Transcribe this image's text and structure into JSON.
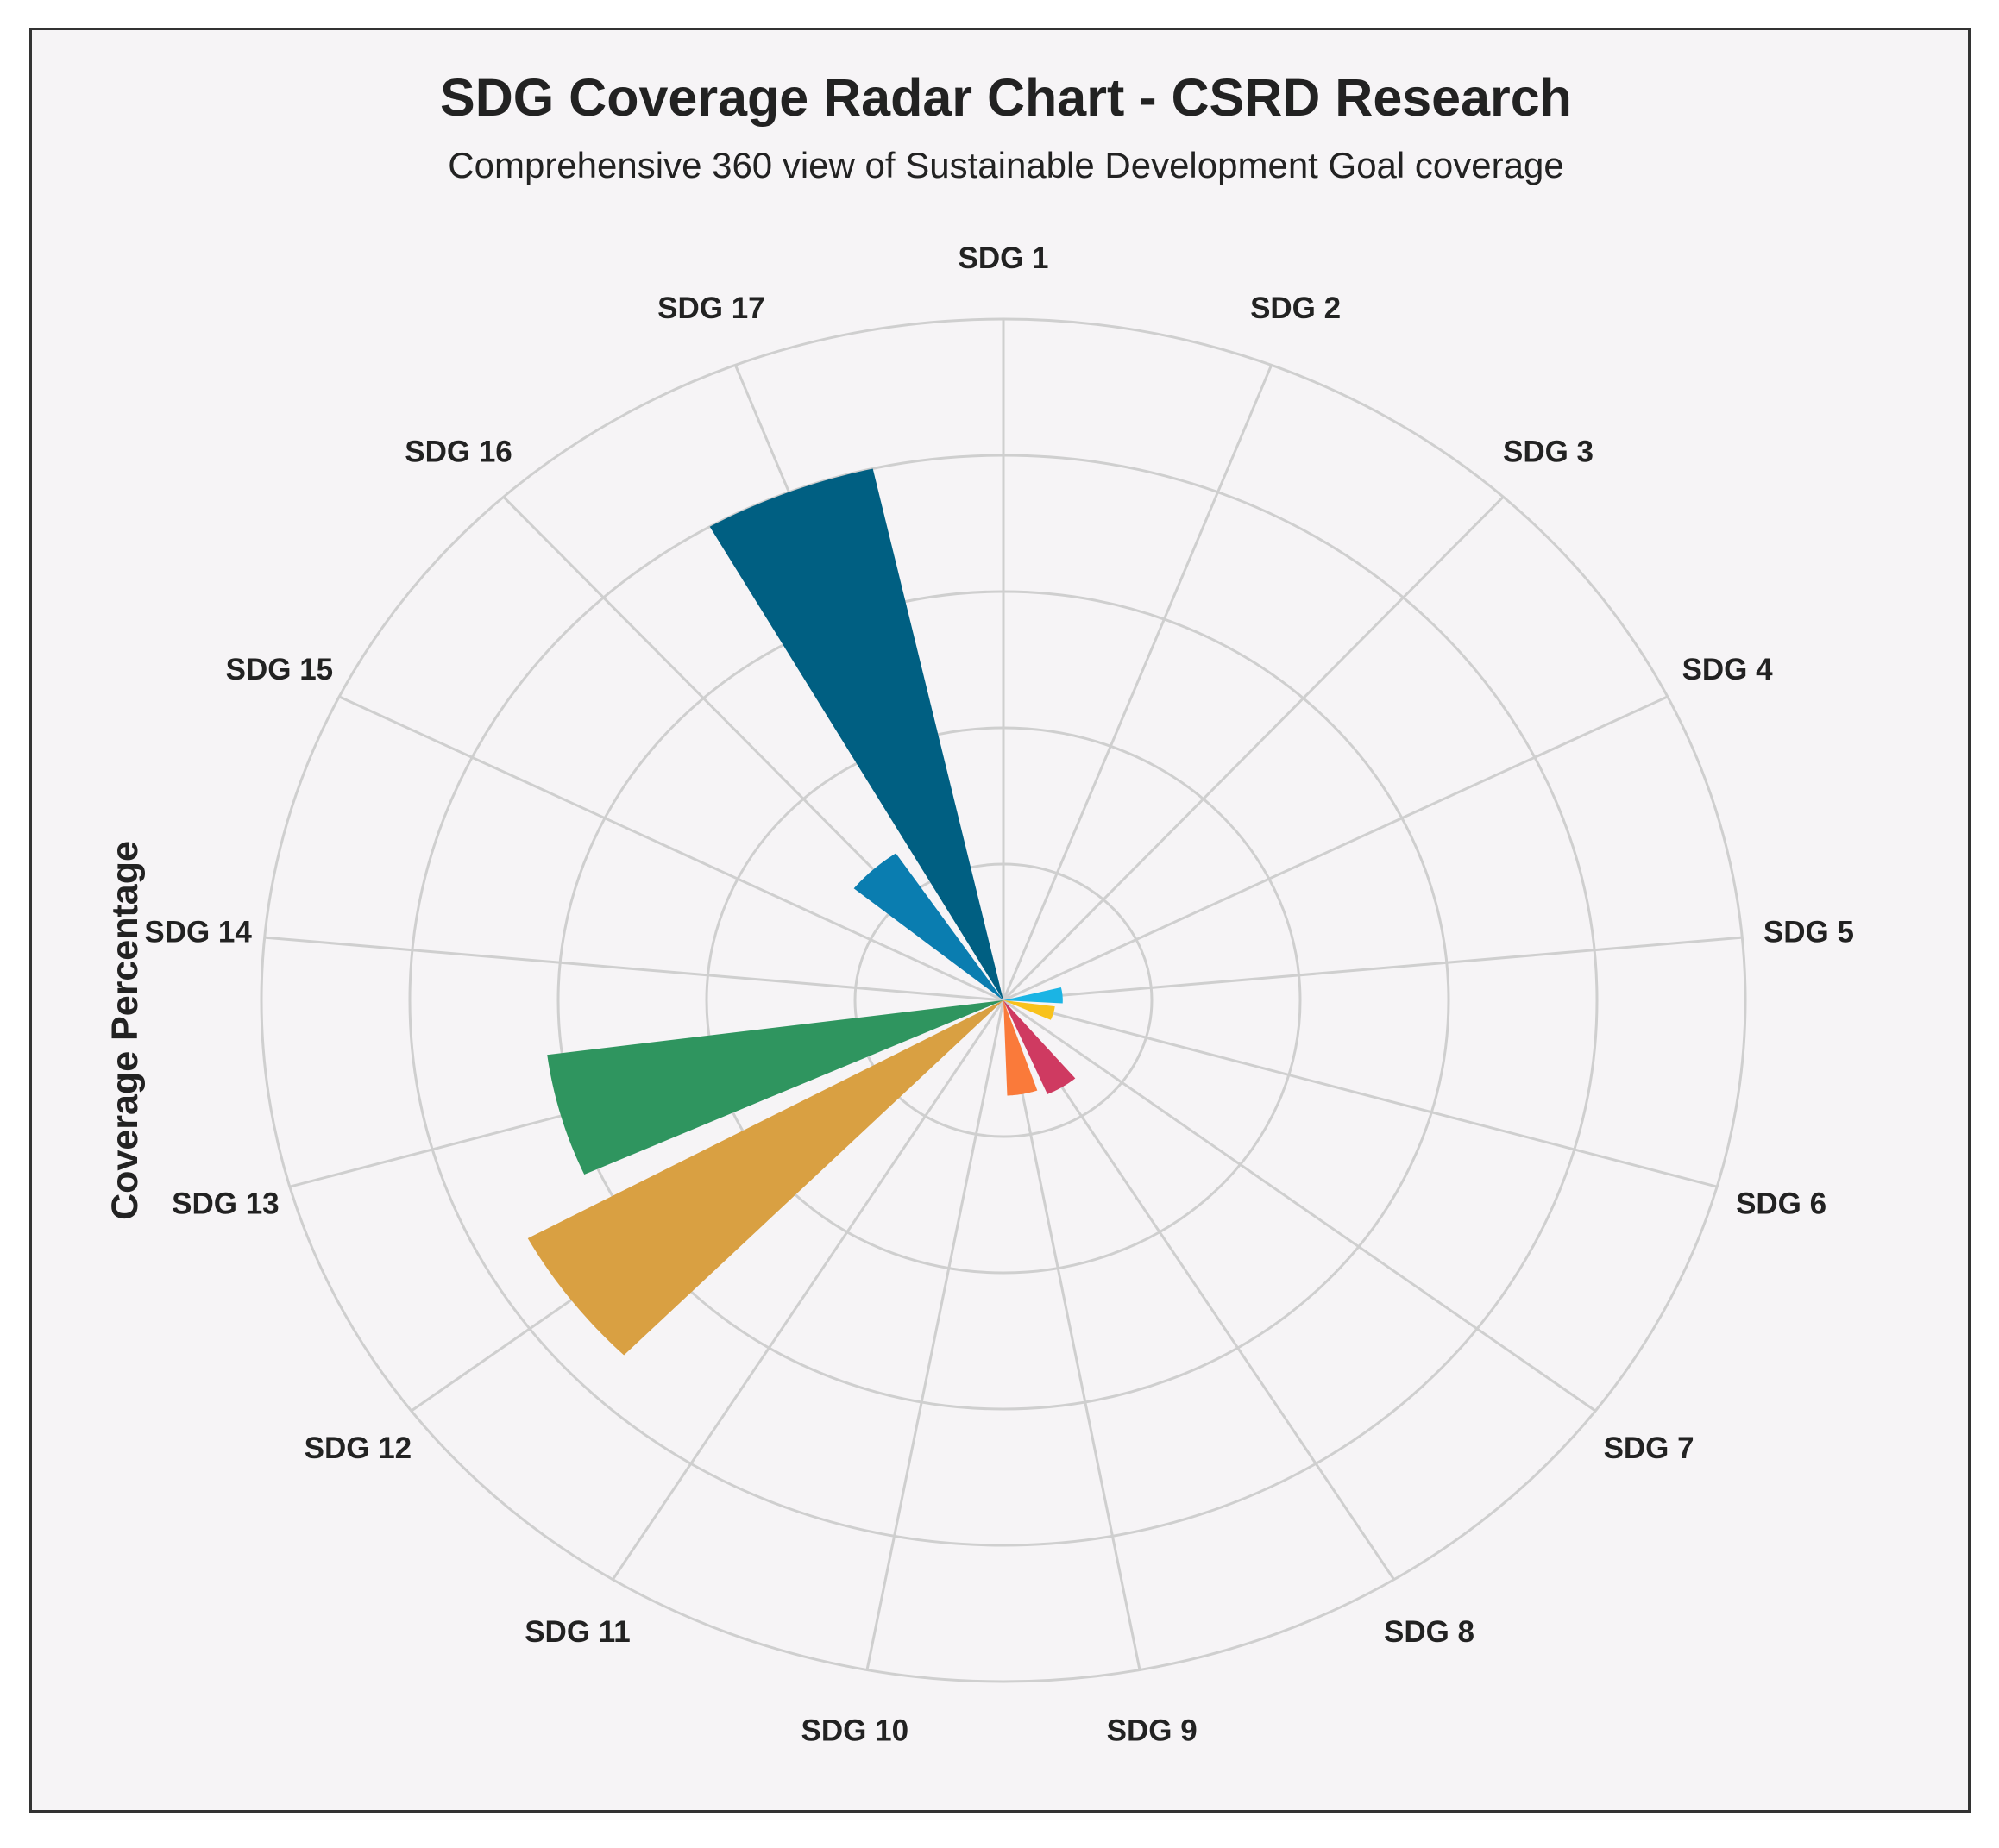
{
  "chart_data": {
    "type": "polar-bar",
    "title": "SDG Coverage Radar Chart - CSRD Research",
    "subtitle": "Comprehensive 360 view of Sustainable Development Goal coverage",
    "ylabel": "Coverage Percentage",
    "ylim": [
      0,
      100
    ],
    "radial_gridlines": [
      20,
      40,
      60,
      80,
      100
    ],
    "radial_tick_labels_shown": false,
    "grid": true,
    "direction": "clockwise",
    "start_angle": "top",
    "categories": [
      "SDG 1",
      "SDG 2",
      "SDG 3",
      "SDG 4",
      "SDG 5",
      "SDG 6",
      "SDG 7",
      "SDG 8",
      "SDG 9",
      "SDG 10",
      "SDG 11",
      "SDG 12",
      "SDG 13",
      "SDG 14",
      "SDG 15",
      "SDG 16",
      "SDG 17"
    ],
    "values": [
      0,
      0,
      0,
      0,
      8,
      7,
      0,
      15,
      14,
      0,
      0,
      73,
      62,
      0,
      0,
      26,
      80
    ],
    "colors": [
      "#005f82",
      "#005f82",
      "#005f82",
      "#005f82",
      "#1bb4e4",
      "#f8c21c",
      "#f8c21c",
      "#cf3a61",
      "#fa7a3a",
      "#fa7a3a",
      "#d9a042",
      "#d9a042",
      "#2f955f",
      "#2f955f",
      "#0a7db0",
      "#0a7db0",
      "#005f82"
    ]
  }
}
